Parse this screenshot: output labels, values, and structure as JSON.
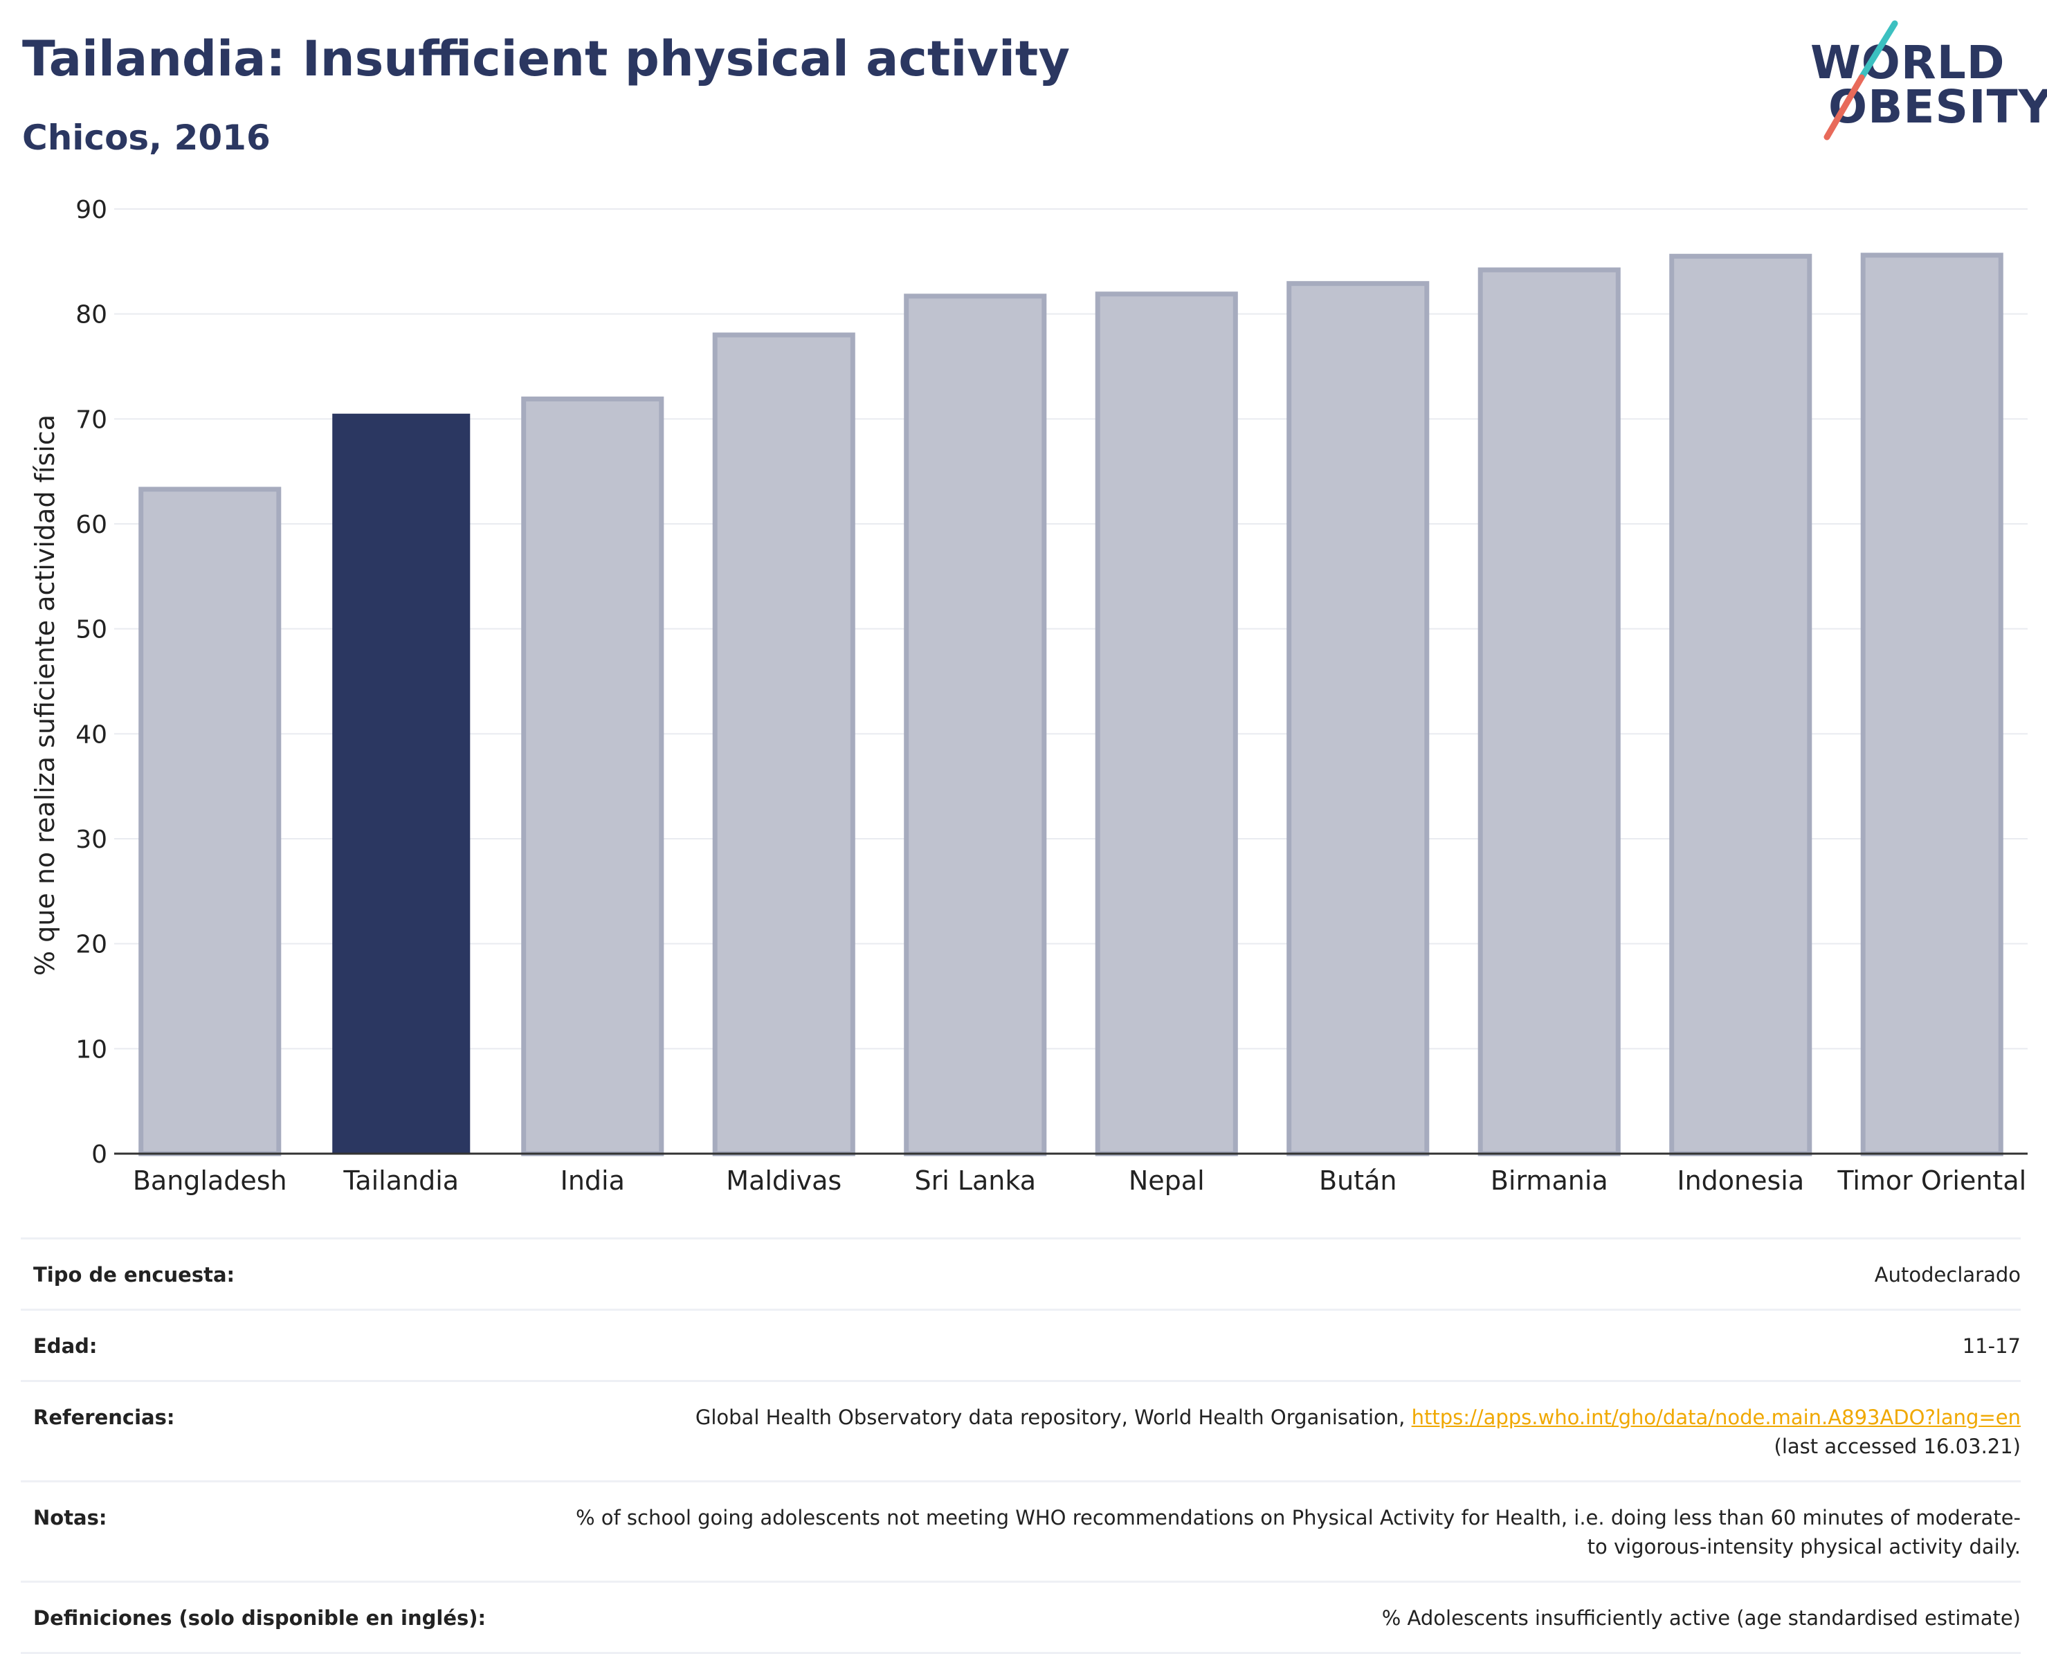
{
  "header": {
    "title": "Tailandia: Insufficient physical activity",
    "subtitle": "Chicos, 2016"
  },
  "logo": {
    "line1": "WORLD",
    "line2": "OBESITY",
    "accent_colors": [
      "#3cc0c0",
      "#e86a5a"
    ]
  },
  "chart_data": {
    "type": "bar",
    "categories": [
      "Bangladesh",
      "Tailandia",
      "India",
      "Maldivas",
      "Sri Lanka",
      "Nepal",
      "Bután",
      "Birmania",
      "Indonesia",
      "Timor Oriental"
    ],
    "values": [
      63.3,
      70.5,
      71.9,
      78.0,
      81.7,
      81.9,
      82.9,
      84.2,
      85.5,
      85.6
    ],
    "highlight": "Tailandia",
    "ylabel": "% que no realiza suficiente actividad física",
    "ylim": [
      0,
      90
    ],
    "yticks": [
      0,
      10,
      20,
      30,
      40,
      50,
      60,
      70,
      80,
      90
    ],
    "grid": true,
    "colors": {
      "highlight": "#2b3761",
      "other_fill": "#bfc2cf",
      "other_stroke": "#a6abbe"
    }
  },
  "meta": {
    "rows": [
      {
        "key": "Tipo de encuesta:",
        "value": "Autodeclarado"
      },
      {
        "key": "Edad:",
        "value": "11-17"
      },
      {
        "key": "Referencias:",
        "value_prefix": "Global Health Observatory data repository, World Health Organisation, ",
        "link": "https://apps.who.int/gho/data/node.main.A893ADO?lang=en",
        "value_suffix": "(last accessed 16.03.21)"
      },
      {
        "key": "Notas:",
        "value": "% of school going adolescents not meeting WHO recommendations on Physical Activity for Health, i.e. doing less than 60 minutes of moderate- to vigorous-intensity physical activity daily."
      },
      {
        "key": "Definiciones (solo disponible en inglés):",
        "value": "% Adolescents insufficiently active (age standardised estimate)"
      }
    ]
  }
}
